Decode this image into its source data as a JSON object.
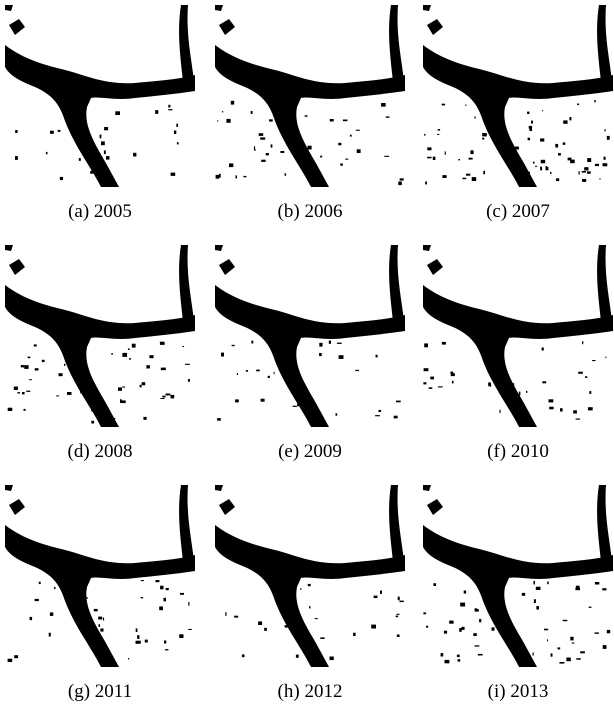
{
  "figures": [
    {
      "caption": "(a) 2005"
    },
    {
      "caption": "(b) 2006"
    },
    {
      "caption": "(c) 2007"
    },
    {
      "caption": "(d) 2008"
    },
    {
      "caption": "(e) 2009"
    },
    {
      "caption": "(f) 2010"
    },
    {
      "caption": "(g) 2011"
    },
    {
      "caption": "(h) 2012"
    },
    {
      "caption": "(i) 2013"
    }
  ]
}
